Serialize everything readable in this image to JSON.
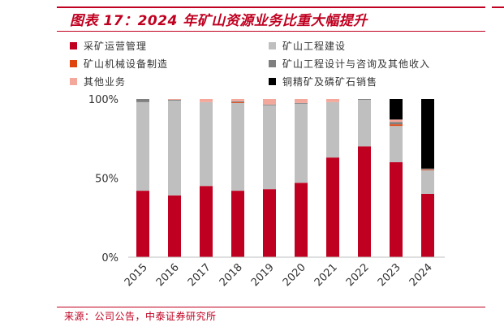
{
  "header": {
    "title": "图表 17：2024 年矿山资源业务比重大幅提升"
  },
  "footer": {
    "source": "来源：公司公告，中泰证券研究所"
  },
  "colors": {
    "accent": "#c00020"
  },
  "chart_data": {
    "type": "bar",
    "stacked": true,
    "categories": [
      "2015",
      "2016",
      "2017",
      "2018",
      "2019",
      "2020",
      "2021",
      "2022",
      "2023",
      "2024"
    ],
    "yticks": [
      "0%",
      "50%",
      "100%"
    ],
    "ylim": [
      0,
      100
    ],
    "grid": false,
    "legend_position": "top",
    "series": [
      {
        "name": "采矿运营管理",
        "color": "#c00020",
        "values": [
          42,
          39,
          45,
          42,
          43,
          47,
          63,
          70,
          60,
          40
        ]
      },
      {
        "name": "矿山工程建设",
        "color": "#bfbfbf",
        "values": [
          56,
          60,
          53,
          55.5,
          53,
          50,
          35,
          29.5,
          23,
          15
        ]
      },
      {
        "name": "矿山机械设备制造",
        "color": "#e0440e",
        "values": [
          0,
          0,
          0,
          0.5,
          0,
          0,
          0,
          0,
          1,
          0.5
        ]
      },
      {
        "name": "矿山工程设计与咨询及其他收入",
        "color": "#7f7f7f",
        "values": [
          2,
          0.5,
          0,
          0.5,
          0.5,
          0.5,
          0,
          0.5,
          1.5,
          0.5
        ]
      },
      {
        "name": "其他业务",
        "color": "#f4a89c",
        "values": [
          0,
          0.5,
          2,
          1.5,
          3.5,
          2.5,
          2,
          0,
          1.5,
          0
        ]
      },
      {
        "name": "铜精矿及磷矿石销售",
        "color": "#000000",
        "values": [
          0,
          0,
          0,
          0,
          0,
          0,
          0,
          0,
          13,
          44
        ]
      }
    ]
  }
}
